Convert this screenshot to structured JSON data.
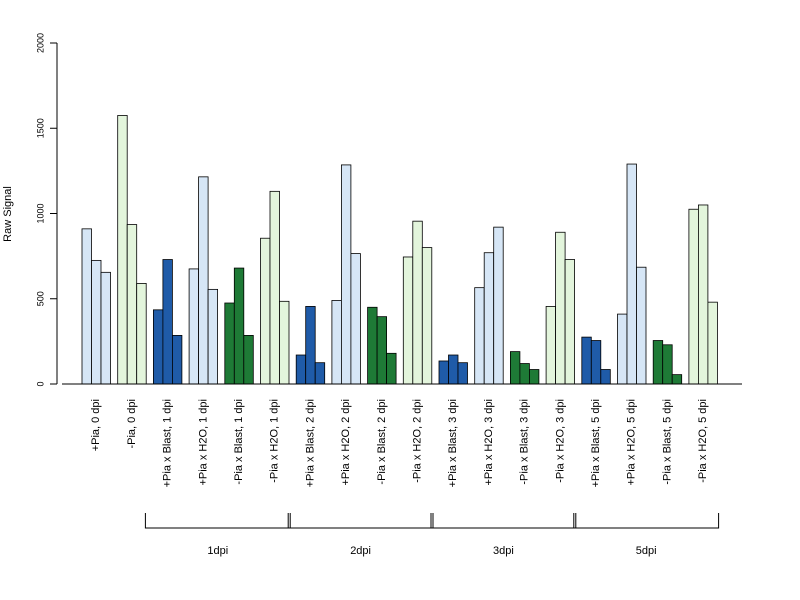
{
  "chart_data": {
    "type": "bar",
    "ylabel": "Raw Signal",
    "xlabel": "",
    "title": "",
    "ylim": [
      0,
      2000
    ],
    "yticks": [
      0,
      500,
      1000,
      1500,
      2000
    ],
    "grid": false,
    "legend": "none",
    "colors": {
      "pia_light": "#d6e6f6",
      "nopia_light": "#e3f5dc",
      "blast_blue": "#1f5ba8",
      "blast_green": "#1e7a36"
    },
    "categories": [
      {
        "label": "+Pia, 0 dpi",
        "color": "pia_light",
        "values": [
          910,
          725,
          655
        ]
      },
      {
        "label": "-Pia, 0 dpi",
        "color": "nopia_light",
        "values": [
          1575,
          935,
          590
        ]
      },
      {
        "label": "+Pia x Blast, 1 dpi",
        "color": "blast_blue",
        "values": [
          435,
          730,
          285
        ]
      },
      {
        "label": "+Pia x H2O, 1 dpi",
        "color": "pia_light",
        "values": [
          675,
          1215,
          555
        ]
      },
      {
        "label": "-Pia x Blast, 1 dpi",
        "color": "blast_green",
        "values": [
          475,
          680,
          285
        ]
      },
      {
        "label": "-Pia x H2O, 1 dpi",
        "color": "nopia_light",
        "values": [
          855,
          1130,
          485
        ]
      },
      {
        "label": "+Pia x Blast, 2 dpi",
        "color": "blast_blue",
        "values": [
          170,
          455,
          125
        ]
      },
      {
        "label": "+Pia x H2O, 2 dpi",
        "color": "pia_light",
        "values": [
          490,
          1285,
          765
        ]
      },
      {
        "label": "-Pia x Blast, 2 dpi",
        "color": "blast_green",
        "values": [
          450,
          395,
          180
        ]
      },
      {
        "label": "-Pia x H2O, 2 dpi",
        "color": "nopia_light",
        "values": [
          745,
          955,
          800
        ]
      },
      {
        "label": "+Pia x Blast, 3 dpi",
        "color": "blast_blue",
        "values": [
          135,
          170,
          125
        ]
      },
      {
        "label": "+Pia x H2O, 3 dpi",
        "color": "pia_light",
        "values": [
          565,
          770,
          920
        ]
      },
      {
        "label": "-Pia x Blast, 3 dpi",
        "color": "blast_green",
        "values": [
          190,
          120,
          85
        ]
      },
      {
        "label": "-Pia x H2O, 3 dpi",
        "color": "nopia_light",
        "values": [
          455,
          890,
          730
        ]
      },
      {
        "label": "+Pia x Blast, 5 dpi",
        "color": "blast_blue",
        "values": [
          275,
          255,
          85
        ]
      },
      {
        "label": "+Pia x H2O, 5 dpi",
        "color": "pia_light",
        "values": [
          410,
          1290,
          685
        ]
      },
      {
        "label": "-Pia x Blast, 5 dpi",
        "color": "blast_green",
        "values": [
          255,
          230,
          55
        ]
      },
      {
        "label": "-Pia x H2O, 5 dpi",
        "color": "nopia_light",
        "values": [
          1025,
          1050,
          480
        ]
      }
    ],
    "groups": [
      {
        "label": "1dpi",
        "first_category": 2,
        "last_category": 5
      },
      {
        "label": "2dpi",
        "first_category": 6,
        "last_category": 9
      },
      {
        "label": "3dpi",
        "first_category": 10,
        "last_category": 13
      },
      {
        "label": "5dpi",
        "first_category": 14,
        "last_category": 17
      }
    ]
  }
}
